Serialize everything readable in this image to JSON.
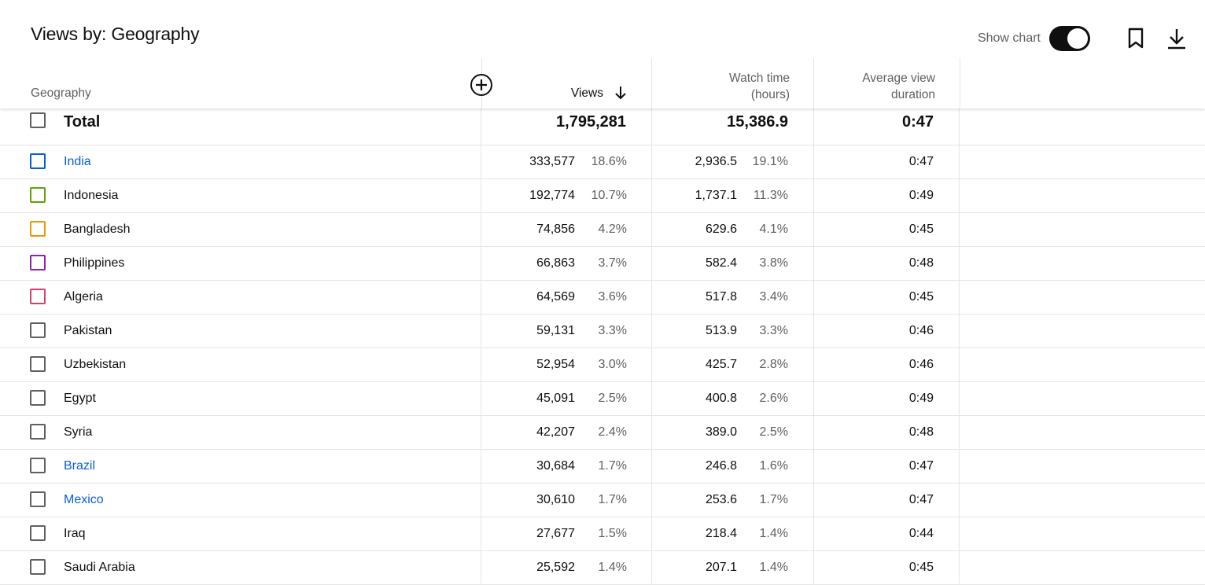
{
  "title": "Views by: Geography",
  "toolbar": {
    "show_chart_label": "Show chart",
    "show_chart_enabled": true
  },
  "columns": {
    "geography": "Geography",
    "views": "Views",
    "watch_time_line1": "Watch time",
    "watch_time_line2": "(hours)",
    "avg_line1": "Average view",
    "avg_line2": "duration"
  },
  "total": {
    "label": "Total",
    "views": "1,795,281",
    "watch_time": "15,386.9",
    "avg_duration": "0:47"
  },
  "rows": [
    {
      "name": "India",
      "views": "333,577",
      "views_pct": "18.6%",
      "watch": "2,936.5",
      "watch_pct": "19.1%",
      "avg": "0:47",
      "color": "#065fd4",
      "link": true
    },
    {
      "name": "Indonesia",
      "views": "192,774",
      "views_pct": "10.7%",
      "watch": "1,737.1",
      "watch_pct": "11.3%",
      "avg": "0:49",
      "color": "#5fa30c",
      "link": false
    },
    {
      "name": "Bangladesh",
      "views": "74,856",
      "views_pct": "4.2%",
      "watch": "629.6",
      "watch_pct": "4.1%",
      "avg": "0:45",
      "color": "#e69b00",
      "link": false
    },
    {
      "name": "Philippines",
      "views": "66,863",
      "views_pct": "3.7%",
      "watch": "582.4",
      "watch_pct": "3.8%",
      "avg": "0:48",
      "color": "#8e24aa",
      "link": false
    },
    {
      "name": "Algeria",
      "views": "64,569",
      "views_pct": "3.6%",
      "watch": "517.8",
      "watch_pct": "3.4%",
      "avg": "0:45",
      "color": "#d0436b",
      "link": false
    },
    {
      "name": "Pakistan",
      "views": "59,131",
      "views_pct": "3.3%",
      "watch": "513.9",
      "watch_pct": "3.3%",
      "avg": "0:46",
      "color": "#606060",
      "link": false
    },
    {
      "name": "Uzbekistan",
      "views": "52,954",
      "views_pct": "3.0%",
      "watch": "425.7",
      "watch_pct": "2.8%",
      "avg": "0:46",
      "color": "#606060",
      "link": false
    },
    {
      "name": "Egypt",
      "views": "45,091",
      "views_pct": "2.5%",
      "watch": "400.8",
      "watch_pct": "2.6%",
      "avg": "0:49",
      "color": "#606060",
      "link": false
    },
    {
      "name": "Syria",
      "views": "42,207",
      "views_pct": "2.4%",
      "watch": "389.0",
      "watch_pct": "2.5%",
      "avg": "0:48",
      "color": "#606060",
      "link": false
    },
    {
      "name": "Brazil",
      "views": "30,684",
      "views_pct": "1.7%",
      "watch": "246.8",
      "watch_pct": "1.6%",
      "avg": "0:47",
      "color": "#606060",
      "link": true
    },
    {
      "name": "Mexico",
      "views": "30,610",
      "views_pct": "1.7%",
      "watch": "253.6",
      "watch_pct": "1.7%",
      "avg": "0:47",
      "color": "#606060",
      "link": true
    },
    {
      "name": "Iraq",
      "views": "27,677",
      "views_pct": "1.5%",
      "watch": "218.4",
      "watch_pct": "1.4%",
      "avg": "0:44",
      "color": "#606060",
      "link": false
    },
    {
      "name": "Saudi Arabia",
      "views": "25,592",
      "views_pct": "1.4%",
      "watch": "207.1",
      "watch_pct": "1.4%",
      "avg": "0:45",
      "color": "#606060",
      "link": false
    }
  ]
}
